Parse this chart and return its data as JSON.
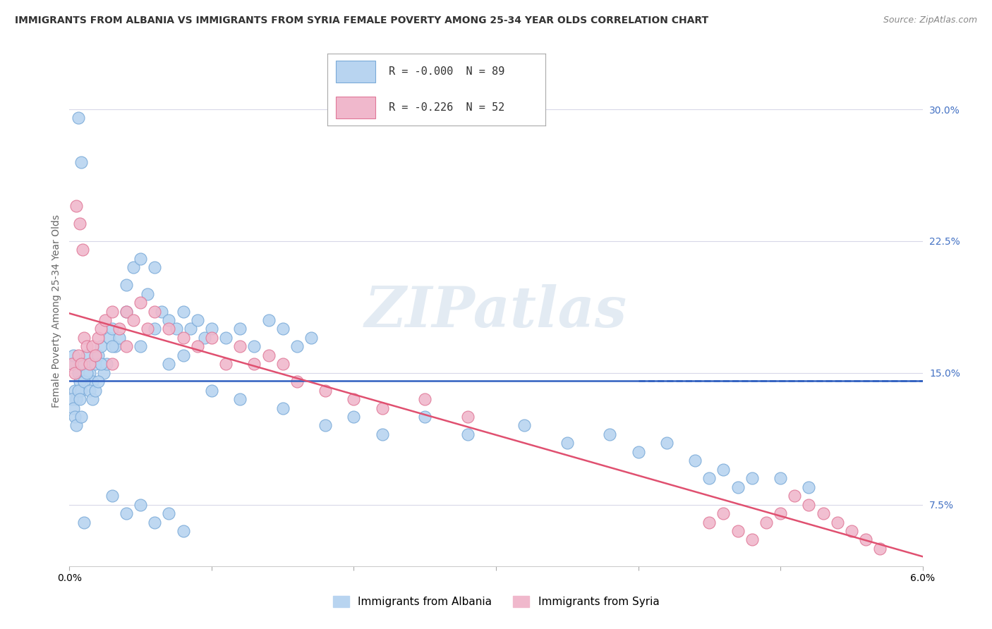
{
  "title": "IMMIGRANTS FROM ALBANIA VS IMMIGRANTS FROM SYRIA FEMALE POVERTY AMONG 25-34 YEAR OLDS CORRELATION CHART",
  "source": "Source: ZipAtlas.com",
  "ylabel": "Female Poverty Among 25-34 Year Olds",
  "xlim": [
    0.0,
    0.06
  ],
  "ylim": [
    0.04,
    0.33
  ],
  "right_yticks": [
    0.075,
    0.15,
    0.225,
    0.3
  ],
  "right_yticklabels": [
    "7.5%",
    "15.0%",
    "22.5%",
    "30.0%"
  ],
  "legend_albania": "Immigrants from Albania",
  "legend_syria": "Immigrants from Syria",
  "r_albania": "-0.000",
  "n_albania": "89",
  "r_syria": "-0.226",
  "n_syria": "52",
  "color_albania": "#b8d4f0",
  "color_syria": "#f0b8cc",
  "edge_albania": "#7aaad8",
  "edge_syria": "#e07898",
  "trend_albania_color": "#3060c0",
  "trend_syria_color": "#e05070",
  "watermark": "ZIPatlas",
  "background_color": "#ffffff",
  "grid_color": "#d8d8e8",
  "albania_x": [
    0.0002,
    0.0003,
    0.0004,
    0.0005,
    0.0006,
    0.0007,
    0.0008,
    0.001,
    0.0012,
    0.0014,
    0.0016,
    0.0018,
    0.002,
    0.0022,
    0.0024,
    0.0026,
    0.0028,
    0.003,
    0.0032,
    0.0035,
    0.004,
    0.0045,
    0.005,
    0.0055,
    0.006,
    0.0065,
    0.007,
    0.0075,
    0.008,
    0.0085,
    0.009,
    0.0095,
    0.01,
    0.011,
    0.012,
    0.013,
    0.014,
    0.015,
    0.016,
    0.017,
    0.0002,
    0.0003,
    0.0004,
    0.0005,
    0.0006,
    0.0007,
    0.0008,
    0.001,
    0.0012,
    0.0014,
    0.0016,
    0.0018,
    0.002,
    0.0022,
    0.003,
    0.004,
    0.005,
    0.006,
    0.007,
    0.008,
    0.01,
    0.012,
    0.015,
    0.018,
    0.02,
    0.022,
    0.025,
    0.028,
    0.032,
    0.035,
    0.038,
    0.04,
    0.042,
    0.044,
    0.045,
    0.046,
    0.047,
    0.048,
    0.05,
    0.052,
    0.003,
    0.004,
    0.005,
    0.006,
    0.007,
    0.008,
    0.0006,
    0.0008,
    0.001
  ],
  "albania_y": [
    0.155,
    0.16,
    0.14,
    0.135,
    0.15,
    0.145,
    0.14,
    0.155,
    0.16,
    0.15,
    0.145,
    0.155,
    0.16,
    0.165,
    0.15,
    0.155,
    0.17,
    0.175,
    0.165,
    0.17,
    0.2,
    0.21,
    0.215,
    0.195,
    0.21,
    0.185,
    0.18,
    0.175,
    0.185,
    0.175,
    0.18,
    0.17,
    0.175,
    0.17,
    0.175,
    0.165,
    0.18,
    0.175,
    0.165,
    0.17,
    0.135,
    0.13,
    0.125,
    0.12,
    0.14,
    0.135,
    0.125,
    0.145,
    0.15,
    0.14,
    0.135,
    0.14,
    0.145,
    0.155,
    0.165,
    0.185,
    0.165,
    0.175,
    0.155,
    0.16,
    0.14,
    0.135,
    0.13,
    0.12,
    0.125,
    0.115,
    0.125,
    0.115,
    0.12,
    0.11,
    0.115,
    0.105,
    0.11,
    0.1,
    0.09,
    0.095,
    0.085,
    0.09,
    0.09,
    0.085,
    0.08,
    0.07,
    0.075,
    0.065,
    0.07,
    0.06,
    0.295,
    0.27,
    0.065
  ],
  "syria_x": [
    0.0002,
    0.0004,
    0.0006,
    0.0008,
    0.001,
    0.0012,
    0.0014,
    0.0016,
    0.0018,
    0.002,
    0.0022,
    0.0025,
    0.003,
    0.0035,
    0.004,
    0.0045,
    0.005,
    0.0055,
    0.006,
    0.007,
    0.008,
    0.009,
    0.01,
    0.011,
    0.012,
    0.013,
    0.014,
    0.015,
    0.016,
    0.018,
    0.02,
    0.022,
    0.025,
    0.028,
    0.003,
    0.004,
    0.0005,
    0.0007,
    0.0009,
    0.045,
    0.046,
    0.047,
    0.048,
    0.049,
    0.05,
    0.051,
    0.052,
    0.053,
    0.054,
    0.055,
    0.056,
    0.057
  ],
  "syria_y": [
    0.155,
    0.15,
    0.16,
    0.155,
    0.17,
    0.165,
    0.155,
    0.165,
    0.16,
    0.17,
    0.175,
    0.18,
    0.185,
    0.175,
    0.185,
    0.18,
    0.19,
    0.175,
    0.185,
    0.175,
    0.17,
    0.165,
    0.17,
    0.155,
    0.165,
    0.155,
    0.16,
    0.155,
    0.145,
    0.14,
    0.135,
    0.13,
    0.135,
    0.125,
    0.155,
    0.165,
    0.245,
    0.235,
    0.22,
    0.065,
    0.07,
    0.06,
    0.055,
    0.065,
    0.07,
    0.08,
    0.075,
    0.07,
    0.065,
    0.06,
    0.055,
    0.05
  ]
}
